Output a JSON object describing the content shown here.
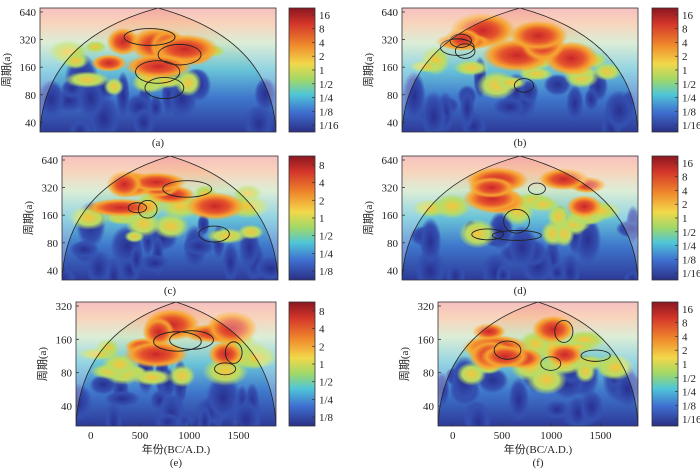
{
  "chart_data": [
    {
      "type": "heatmap",
      "panel_label": "(a)",
      "ylabel": "周期(a)",
      "xlabel": "",
      "y_ticks": [
        "640",
        "320",
        "160",
        "80",
        "40"
      ],
      "x_ticks": [],
      "colorbar_ticks": [
        "16",
        "8",
        "4",
        "2",
        "1",
        "1/2",
        "1/4",
        "1/8",
        "1/16"
      ]
    },
    {
      "type": "heatmap",
      "panel_label": "(b)",
      "ylabel": "周期(a)",
      "xlabel": "",
      "y_ticks": [
        "640",
        "320",
        "160",
        "80",
        "40"
      ],
      "x_ticks": [],
      "colorbar_ticks": [
        "16",
        "8",
        "4",
        "2",
        "1",
        "1/2",
        "1/4",
        "1/8",
        "1/16"
      ]
    },
    {
      "type": "heatmap",
      "panel_label": "(c)",
      "ylabel": "周期(a)",
      "xlabel": "",
      "y_ticks": [
        "640",
        "320",
        "160",
        "80",
        "40"
      ],
      "x_ticks": [],
      "colorbar_ticks": [
        "8",
        "4",
        "2",
        "1",
        "1/2",
        "1/4",
        "1/8"
      ]
    },
    {
      "type": "heatmap",
      "panel_label": "(d)",
      "ylabel": "周期(a)",
      "xlabel": "",
      "y_ticks": [
        "640",
        "320",
        "160",
        "80",
        "40"
      ],
      "x_ticks": [],
      "colorbar_ticks": [
        "16",
        "8",
        "4",
        "2",
        "1",
        "1/2",
        "1/4",
        "1/8",
        "1/16"
      ]
    },
    {
      "type": "heatmap",
      "panel_label": "(e)",
      "ylabel": "周期(a)",
      "xlabel": "年份(BC/A.D.)",
      "y_ticks": [
        "320",
        "160",
        "80",
        "40"
      ],
      "x_ticks": [
        "0",
        "500",
        "1000",
        "1500"
      ],
      "colorbar_ticks": [
        "8",
        "4",
        "2",
        "1",
        "1/2",
        "1/4",
        "1/8"
      ]
    },
    {
      "type": "heatmap",
      "panel_label": "(f)",
      "ylabel": "周期(a)",
      "xlabel": "年份(BC/A.D.)",
      "y_ticks": [
        "320",
        "160",
        "80",
        "40"
      ],
      "x_ticks": [
        "0",
        "500",
        "1000",
        "1500"
      ],
      "colorbar_ticks": [
        "16",
        "8",
        "4",
        "2",
        "1",
        "1/2",
        "1/4",
        "1/8",
        "1/16"
      ]
    }
  ],
  "colors": {
    "deep_blue": "#2b3a98",
    "blue": "#3f6fd0",
    "cyan": "#4fc6d8",
    "green": "#9ed86a",
    "yellow": "#f2d84a",
    "orange": "#f08a2c",
    "red": "#d4362a",
    "dark_red": "#9a1a22",
    "pink_band": "#e87d7d"
  }
}
